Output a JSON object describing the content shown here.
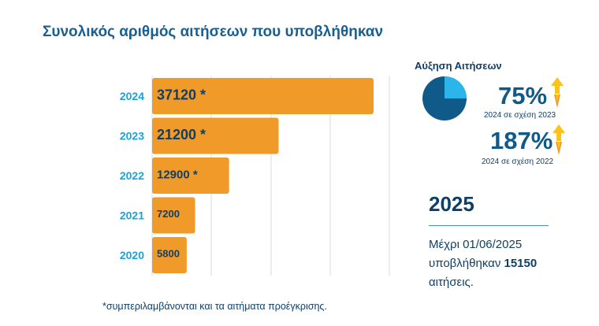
{
  "title": "Συνολικός αριθμός αιτήσεων που υποβλήθηκαν",
  "chart_data": {
    "type": "bar",
    "orientation": "horizontal",
    "categories": [
      "2024",
      "2023",
      "2022",
      "2021",
      "2020"
    ],
    "values": [
      37120,
      21200,
      12900,
      7200,
      5800
    ],
    "labels": [
      "37120 *",
      "21200 *",
      "12900 *",
      "7200",
      "5800"
    ],
    "xlim": [
      0,
      37120
    ],
    "grid": true,
    "bar_color": "#f09a2a"
  },
  "footnote": "*συμπεριλαμβάνονται και τα αιτήματα προέγκρισης.",
  "growth": {
    "title": "Αύξηση Αιτήσεων",
    "pie_share": 0.25,
    "pie_colors": [
      "#0f5a88",
      "#2bb5ea"
    ],
    "stats": [
      {
        "value": "75%",
        "caption": "2024 σε σχέση  2023"
      },
      {
        "value": "187%",
        "caption": "2024 σε σχέση 2022"
      }
    ]
  },
  "summary": {
    "year": "2025",
    "line1": "Μέχρι 01/06/2025",
    "line2_prefix": "υποβλήθηκαν ",
    "count": "15150",
    "line3": "αιτήσεις."
  }
}
